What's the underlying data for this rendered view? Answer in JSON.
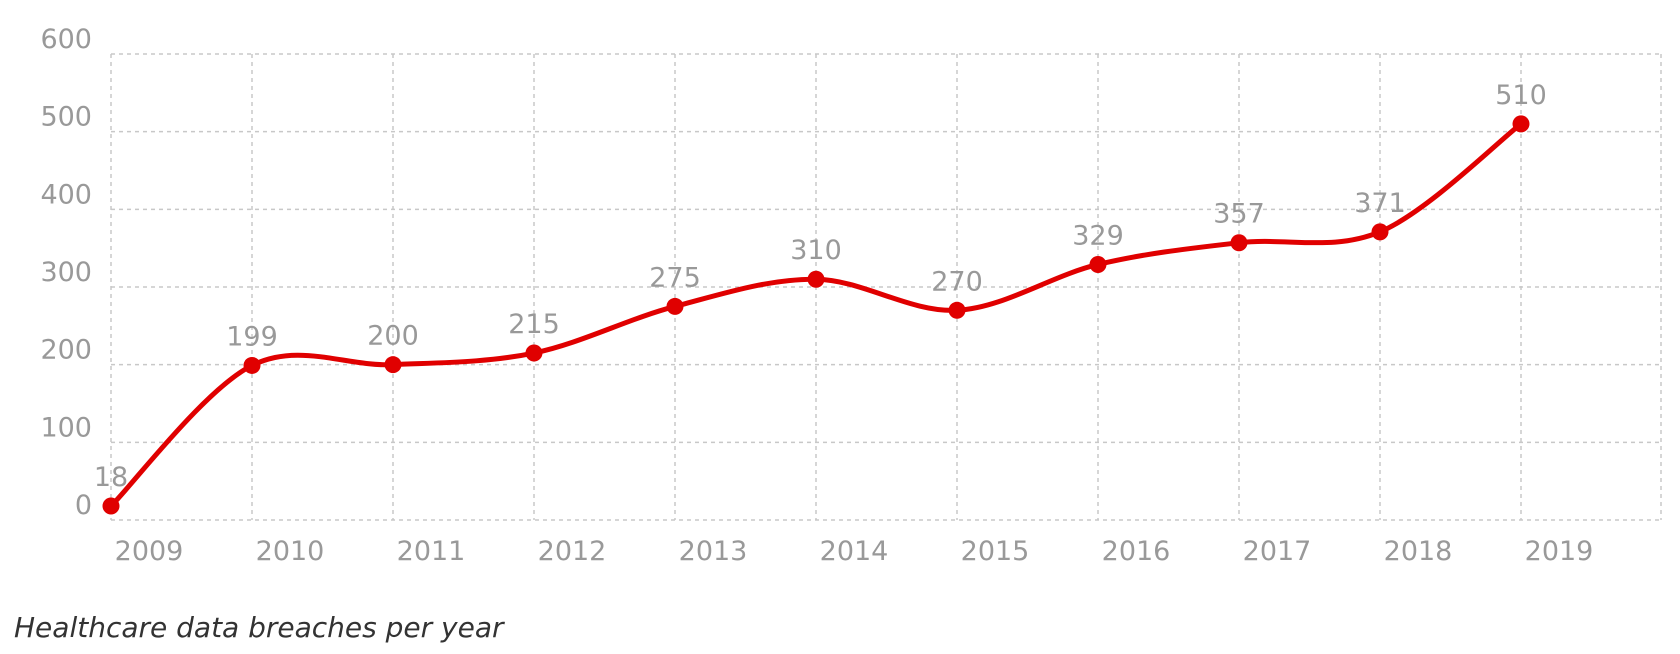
{
  "chart_data": {
    "type": "line",
    "title": "Healthcare data breaches per year",
    "categories": [
      "2009",
      "2010",
      "2011",
      "2012",
      "2013",
      "2014",
      "2015",
      "2016",
      "2017",
      "2018",
      "2019"
    ],
    "values": [
      18,
      199,
      200,
      215,
      275,
      310,
      270,
      329,
      357,
      371,
      510
    ],
    "color": "#e00000",
    "ylim": [
      0,
      600
    ],
    "yticks": [
      0,
      100,
      200,
      300,
      400,
      500,
      600
    ],
    "grid": true,
    "data_labels": true
  }
}
